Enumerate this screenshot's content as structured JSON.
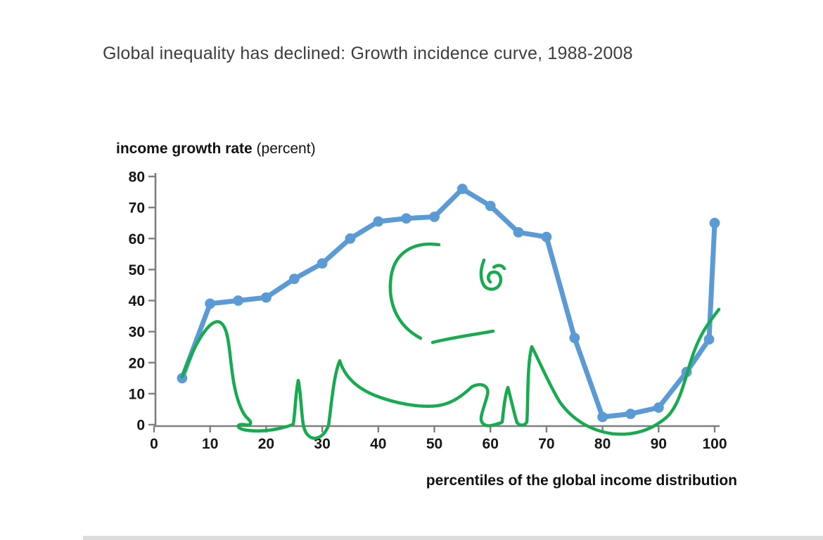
{
  "title": "Global inequality has declined: Growth incidence curve, 1988-2008",
  "chart_data": {
    "type": "line",
    "title": "Global inequality has declined: Growth incidence curve, 1988-2008",
    "series": [
      {
        "name": "growth incidence curve 1988-2008",
        "x": [
          5,
          10,
          15,
          20,
          25,
          30,
          35,
          40,
          45,
          50,
          55,
          60,
          65,
          70,
          75,
          80,
          85,
          90,
          95,
          99,
          100
        ],
        "y": [
          15,
          39,
          40,
          41,
          47,
          52,
          60,
          65.5,
          66.5,
          67,
          76,
          70.5,
          62,
          60.5,
          28,
          2.5,
          3.5,
          5.5,
          17,
          27.5,
          65
        ]
      }
    ],
    "ylabel_bold": "income growth rate",
    "ylabel_regular": " (percent)",
    "xlabel": "percentiles of the global income distribution",
    "x_ticks": [
      0,
      10,
      20,
      30,
      40,
      50,
      60,
      70,
      80,
      90,
      100
    ],
    "y_ticks": [
      0,
      10,
      20,
      30,
      40,
      50,
      60,
      70,
      80
    ],
    "xlim": [
      0,
      100
    ],
    "ylim": [
      0,
      80
    ],
    "grid": false,
    "legend": "none",
    "marker": "circle",
    "line_color": "#5B9BD5",
    "axis_color": "#7f7f7f",
    "tick_label_color": "#161616",
    "annotation": "hand-drawn green elephant sketch overlaid on the curve",
    "annotation_color": "#17AB50"
  }
}
